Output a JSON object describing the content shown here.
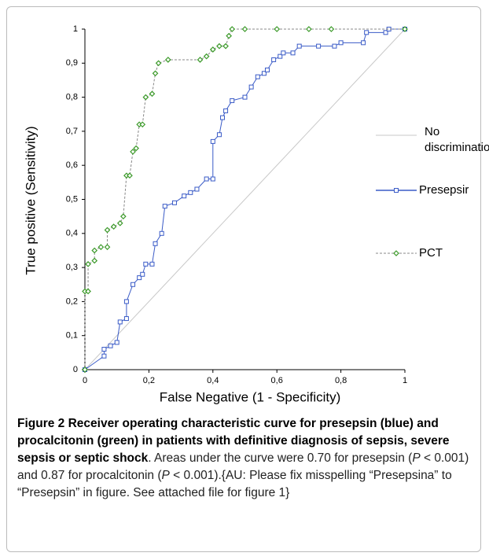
{
  "chart_data": {
    "type": "line",
    "xlabel": "False Negative (1 - Specificity)",
    "ylabel": "True positive (Sensitivity)",
    "xlim": [
      0,
      1
    ],
    "ylim": [
      0,
      1
    ],
    "xticks": [
      0,
      {
        "value": 0.2,
        "label": "0,2"
      },
      {
        "value": 0.4,
        "label": "0,4"
      },
      {
        "value": 0.6,
        "label": "0,6"
      },
      {
        "value": 0.8,
        "label": "0,8"
      },
      1
    ],
    "yticks": [
      0,
      {
        "value": 0.1,
        "label": "0,1"
      },
      {
        "value": 0.2,
        "label": "0,2"
      },
      {
        "value": 0.3,
        "label": "0,3"
      },
      {
        "value": 0.4,
        "label": "0,4"
      },
      {
        "value": 0.5,
        "label": "0,5"
      },
      {
        "value": 0.6,
        "label": "0,6"
      },
      {
        "value": 0.7,
        "label": "0,7"
      },
      {
        "value": 0.8,
        "label": "0,8"
      },
      {
        "value": 0.9,
        "label": "0,9"
      },
      1
    ],
    "series": [
      {
        "name": "No discrimination",
        "color": "#c8c8c8",
        "marker": "none",
        "x": [
          0,
          1
        ],
        "values": [
          0,
          1
        ]
      },
      {
        "name": "Presepsir",
        "color": "#3a5bc7",
        "marker": "square",
        "x": [
          0,
          0.06,
          0.06,
          0.08,
          0.1,
          0.11,
          0.13,
          0.13,
          0.15,
          0.17,
          0.18,
          0.19,
          0.21,
          0.22,
          0.24,
          0.25,
          0.28,
          0.31,
          0.33,
          0.35,
          0.38,
          0.4,
          0.4,
          0.42,
          0.43,
          0.44,
          0.46,
          0.5,
          0.52,
          0.54,
          0.56,
          0.57,
          0.59,
          0.61,
          0.62,
          0.65,
          0.67,
          0.73,
          0.78,
          0.8,
          0.87,
          0.88,
          0.94,
          0.95,
          1
        ],
        "values": [
          0,
          0.04,
          0.06,
          0.07,
          0.08,
          0.14,
          0.15,
          0.2,
          0.25,
          0.27,
          0.28,
          0.31,
          0.31,
          0.37,
          0.4,
          0.48,
          0.49,
          0.51,
          0.52,
          0.53,
          0.56,
          0.56,
          0.67,
          0.69,
          0.74,
          0.76,
          0.79,
          0.8,
          0.83,
          0.86,
          0.87,
          0.88,
          0.91,
          0.92,
          0.93,
          0.93,
          0.95,
          0.95,
          0.95,
          0.96,
          0.96,
          0.99,
          0.99,
          1,
          1
        ]
      },
      {
        "name": "PCT",
        "color": "#3c9a2a",
        "marker": "diamond",
        "x": [
          0,
          0,
          0.01,
          0.01,
          0.03,
          0.03,
          0.05,
          0.07,
          0.07,
          0.09,
          0.11,
          0.12,
          0.13,
          0.14,
          0.15,
          0.16,
          0.17,
          0.18,
          0.19,
          0.21,
          0.22,
          0.23,
          0.26,
          0.36,
          0.38,
          0.4,
          0.42,
          0.44,
          0.45,
          0.46,
          0.5,
          0.6,
          0.7,
          0.77,
          1
        ],
        "values": [
          0,
          0.23,
          0.23,
          0.31,
          0.32,
          0.35,
          0.36,
          0.36,
          0.41,
          0.42,
          0.43,
          0.45,
          0.57,
          0.57,
          0.64,
          0.65,
          0.72,
          0.72,
          0.8,
          0.81,
          0.87,
          0.9,
          0.91,
          0.91,
          0.92,
          0.94,
          0.95,
          0.95,
          0.98,
          1,
          1,
          1,
          1,
          1,
          1
        ]
      }
    ]
  },
  "caption": {
    "label": "Figure 2",
    "title": "Receiver operating characteristic curve for presepsin (blue) and procalcitonin (green) in patients with definitive diagnosis of sepsis, severe sepsis or septic shock",
    "text_parts": [
      "Areas under the curve were 0.70 for presepsin (",
      "P",
      " < 0.001) and 0.87 for procalcitonin (",
      "P",
      " < 0.001).{AU: Please fix misspelling “Presepsina” to “Presepsin” in figure. See attached file for figure 1}"
    ]
  }
}
